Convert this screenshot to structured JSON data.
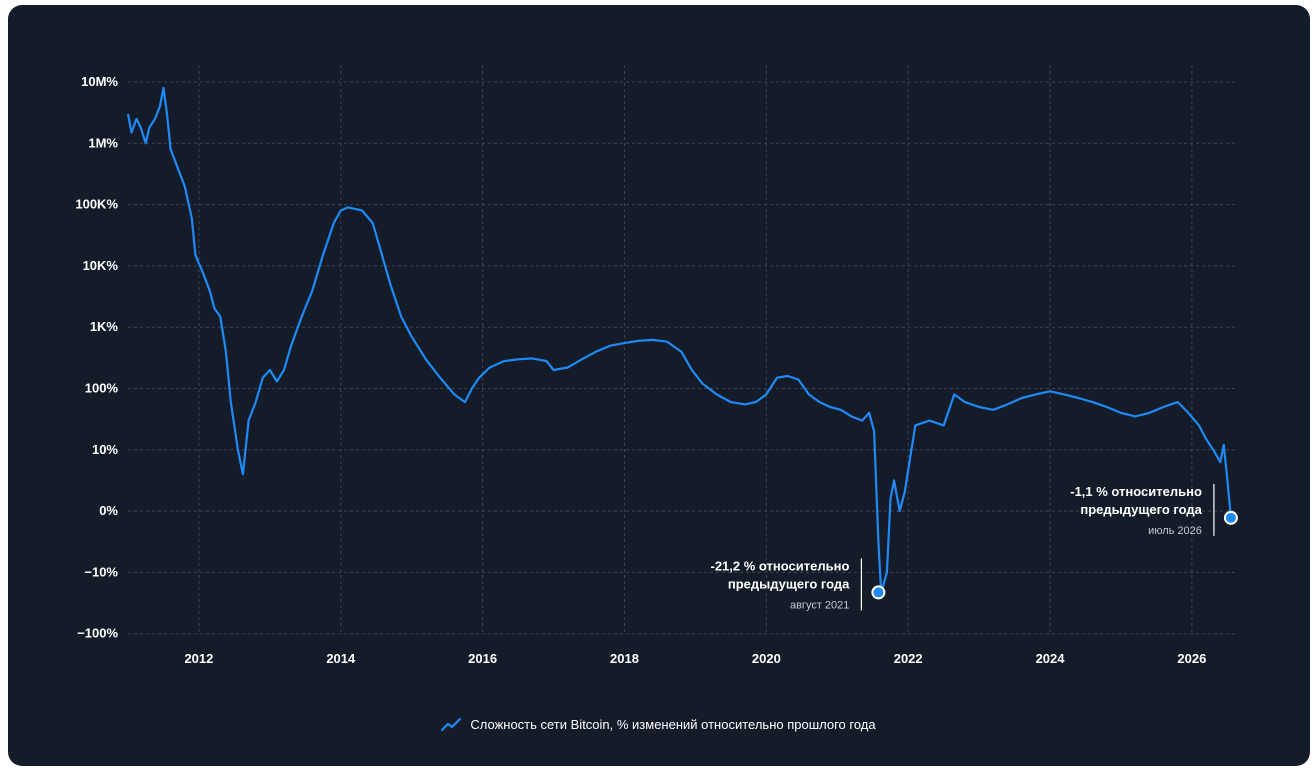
{
  "colors": {
    "background": "#141c2a",
    "line": "#1f8af5",
    "grid": "#3a4556",
    "text": "#ffffff"
  },
  "legend": {
    "label": "Сложность сети Bitcoin, % изменений относительно прошлого года",
    "icon": "line-chart-icon"
  },
  "annotations": [
    {
      "line1": "-21,2 % относительно",
      "line2": "предыдущего года",
      "date": "август 2021",
      "x": 2021.58,
      "y": -21.2
    },
    {
      "line1": "-1,1 % относительно",
      "line2": "предыдущего года",
      "date": "июль 2026",
      "x": 2026.55,
      "y": -1.1
    }
  ],
  "chart_data": {
    "type": "line",
    "title": "",
    "xlabel": "",
    "ylabel": "",
    "x_ticks": [
      "2012",
      "2014",
      "2016",
      "2018",
      "2020",
      "2022",
      "2024",
      "2026"
    ],
    "y_ticks": [
      "10M%",
      "1M%",
      "100K%",
      "10K%",
      "1K%",
      "100%",
      "10%",
      "0%",
      "−10%",
      "−100%"
    ],
    "y_scale": "symlog",
    "xlim": [
      2011.0,
      2026.65
    ],
    "grid": true,
    "legend_position": "bottom-center",
    "series": [
      {
        "name": "Сложность сети Bitcoin, % изменений относительно прошлого года",
        "x": [
          2011.0,
          2011.05,
          2011.12,
          2011.18,
          2011.25,
          2011.3,
          2011.38,
          2011.45,
          2011.5,
          2011.55,
          2011.6,
          2011.7,
          2011.8,
          2011.9,
          2011.95,
          2012.05,
          2012.15,
          2012.22,
          2012.3,
          2012.38,
          2012.45,
          2012.55,
          2012.62,
          2012.7,
          2012.8,
          2012.9,
          2013.0,
          2013.1,
          2013.2,
          2013.3,
          2013.45,
          2013.6,
          2013.75,
          2013.9,
          2014.0,
          2014.1,
          2014.2,
          2014.3,
          2014.45,
          2014.55,
          2014.7,
          2014.85,
          2015.0,
          2015.2,
          2015.4,
          2015.6,
          2015.75,
          2015.85,
          2015.95,
          2016.1,
          2016.3,
          2016.5,
          2016.7,
          2016.9,
          2017.0,
          2017.2,
          2017.4,
          2017.6,
          2017.8,
          2018.0,
          2018.2,
          2018.4,
          2018.6,
          2018.8,
          2018.95,
          2019.1,
          2019.3,
          2019.5,
          2019.7,
          2019.85,
          2020.0,
          2020.15,
          2020.3,
          2020.45,
          2020.6,
          2020.75,
          2020.9,
          2021.05,
          2021.2,
          2021.35,
          2021.45,
          2021.52,
          2021.58,
          2021.62,
          2021.7,
          2021.75,
          2021.8,
          2021.88,
          2021.95,
          2022.1,
          2022.3,
          2022.5,
          2022.65,
          2022.8,
          2023.0,
          2023.2,
          2023.4,
          2023.6,
          2023.8,
          2024.0,
          2024.2,
          2024.4,
          2024.6,
          2024.8,
          2025.0,
          2025.2,
          2025.4,
          2025.6,
          2025.8,
          2025.95,
          2026.1,
          2026.2,
          2026.3,
          2026.4,
          2026.45,
          2026.5,
          2026.55
        ],
        "y": [
          3000000,
          1500000,
          2500000,
          1800000,
          1000000,
          1800000,
          2500000,
          4000000,
          8000000,
          3000000,
          800000,
          400000,
          200000,
          60000,
          15000,
          8000,
          4000,
          2000,
          1500,
          400,
          60,
          10,
          6,
          30,
          60,
          150,
          200,
          130,
          200,
          500,
          1500,
          4000,
          15000,
          50000,
          80000,
          90000,
          85000,
          80000,
          50000,
          20000,
          5000,
          1500,
          700,
          300,
          150,
          80,
          60,
          100,
          150,
          220,
          280,
          300,
          310,
          280,
          200,
          220,
          300,
          400,
          500,
          550,
          600,
          620,
          580,
          400,
          200,
          120,
          80,
          60,
          55,
          60,
          80,
          150,
          160,
          140,
          80,
          60,
          50,
          45,
          35,
          30,
          40,
          20,
          -5,
          -21.2,
          -10,
          2,
          5,
          0,
          3,
          25,
          30,
          25,
          80,
          60,
          50,
          45,
          55,
          70,
          80,
          90,
          80,
          70,
          60,
          50,
          40,
          35,
          40,
          50,
          60,
          40,
          25,
          15,
          10,
          8,
          12,
          5,
          -1.1
        ]
      }
    ]
  }
}
